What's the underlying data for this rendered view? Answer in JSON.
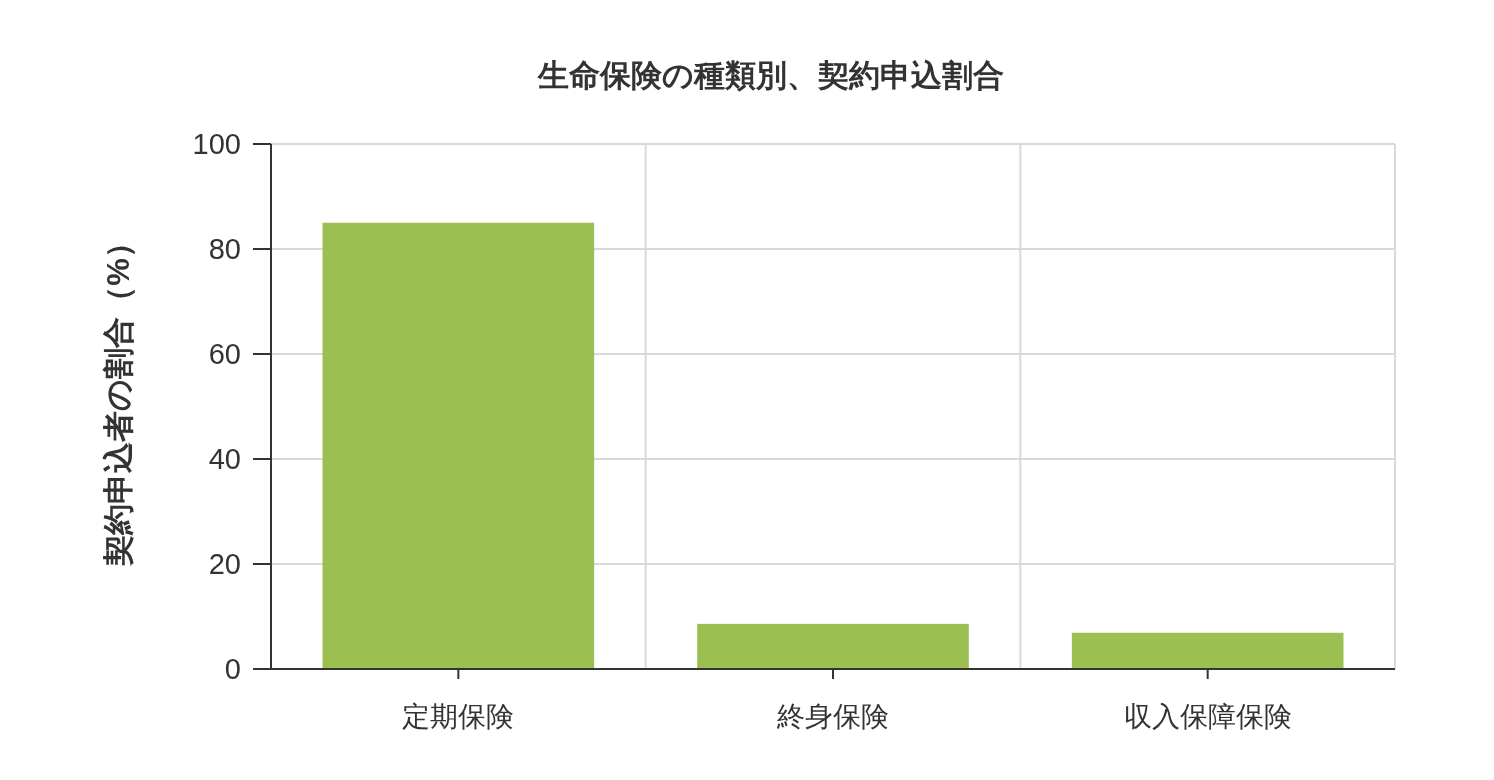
{
  "chart_data": {
    "type": "bar",
    "title": "生命保険の種類別、契約申込割合",
    "ylabel": "契約申込者の割合（%）",
    "categories": [
      "定期保険",
      "終身保険",
      "収入保障保険"
    ],
    "values": [
      85,
      8.6,
      6.9
    ],
    "color": "#9bbf50",
    "ylim": [
      0,
      100
    ],
    "yticks": [
      0,
      20,
      40,
      60,
      80,
      100
    ],
    "grid": true
  }
}
